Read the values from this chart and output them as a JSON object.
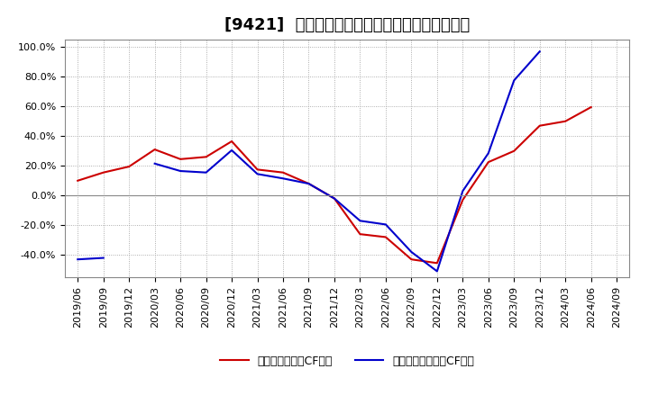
{
  "title": "[9421]  有利子負債キャッシュフロー比率の推移",
  "legend_red": "有利子負債営業CF比率",
  "legend_blue": "有利子負債フリーCF比率",
  "x_labels": [
    "2019/06",
    "2019/09",
    "2019/12",
    "2020/03",
    "2020/06",
    "2020/09",
    "2020/12",
    "2021/03",
    "2021/06",
    "2021/09",
    "2021/12",
    "2022/03",
    "2022/06",
    "2022/09",
    "2022/12",
    "2023/03",
    "2023/06",
    "2023/09",
    "2023/12",
    "2024/03",
    "2024/06",
    "2024/09"
  ],
  "red_values": [
    0.1,
    0.155,
    0.195,
    0.31,
    0.245,
    0.26,
    0.365,
    0.175,
    0.155,
    0.08,
    -0.02,
    -0.26,
    -0.28,
    -0.43,
    -0.455,
    -0.03,
    0.225,
    0.3,
    0.47,
    0.5,
    0.595,
    null
  ],
  "blue_values": [
    -0.43,
    -0.42,
    null,
    0.215,
    0.165,
    0.155,
    0.305,
    0.145,
    0.115,
    0.08,
    -0.02,
    -0.17,
    -0.195,
    -0.38,
    -0.51,
    0.03,
    0.285,
    0.775,
    0.97,
    null,
    null,
    null
  ],
  "ylim": [
    -0.55,
    1.05
  ],
  "yticks": [
    -0.4,
    -0.2,
    0.0,
    0.2,
    0.4,
    0.6,
    0.8,
    1.0
  ],
  "red_color": "#cc0000",
  "blue_color": "#0000cc",
  "grid_color": "#aaaaaa",
  "bg_color": "#ffffff",
  "plot_bg_color": "#f0f0f0",
  "title_fontsize": 13,
  "axis_fontsize": 8,
  "legend_fontsize": 9
}
